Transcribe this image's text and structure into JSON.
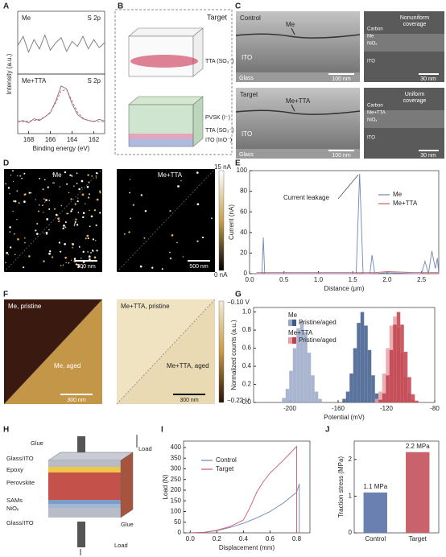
{
  "panel_labels": [
    "A",
    "B",
    "C",
    "D",
    "E",
    "F",
    "G",
    "H",
    "I",
    "J"
  ],
  "panel_b": {
    "title": "Target",
    "top_layer": "TTA (SO₃⁻)",
    "layers": [
      "PVSK (I⁻)",
      "TTA (SO₃⁻)",
      "ITO (InO⁻)"
    ]
  },
  "panel_c": {
    "rows": [
      {
        "title": "Control",
        "film": "Me",
        "substrate": "ITO",
        "glass": "Glass",
        "scale": "100 nm",
        "note": [
          "Nonuniform",
          "coverage"
        ],
        "zoom_layers": [
          "Carbon",
          "Me",
          "NiOₓ",
          "ITO"
        ],
        "zoom_scale": "30 nm"
      },
      {
        "title": "Target",
        "film": "Me+TTA",
        "substrate": "ITO",
        "glass": "Glass",
        "scale": "100 nm",
        "note": [
          "Uniform",
          "coverage"
        ],
        "zoom_layers": [
          "Carbon",
          "Me+TTA",
          "NiOₓ",
          "ITO"
        ],
        "zoom_scale": "30 nm"
      }
    ]
  },
  "panel_d": {
    "images": [
      {
        "label": "Me",
        "scale": "500 nm"
      },
      {
        "label": "Me+TTA",
        "scale": "500 nm"
      }
    ],
    "colorbar": [
      "15 nA",
      "0 nA"
    ]
  },
  "panel_f": {
    "images": [
      {
        "labels": [
          "Me, pristine",
          "Me, aged"
        ],
        "scale": "300 nm"
      },
      {
        "labels": [
          "Me+TTA, pristine",
          "Me+TTA, aged"
        ],
        "scale": "300 nm"
      }
    ],
    "colorbar": [
      "−0.10 V",
      "−0.22 V"
    ]
  },
  "panel_h": {
    "labels": [
      "Glue",
      "Load",
      "Glass/ITO",
      "Epoxy",
      "Perovskite",
      "SAMs",
      "NiOₓ",
      "Glue",
      "Glass/ITO",
      "Load"
    ]
  },
  "chart_data": [
    {
      "type": "line",
      "label": "Me",
      "annotation": "S 2p",
      "ylabel": "Intensity (a.u.)",
      "x": [
        169,
        168.5,
        168,
        167.5,
        167,
        166.5,
        166,
        165.5,
        165,
        164.5,
        164,
        163.5,
        163,
        162.5,
        162,
        161.5,
        161
      ],
      "xlim": [
        169,
        161
      ],
      "ylim": [
        0,
        1
      ],
      "series": [
        {
          "color": "#777777",
          "values": [
            0.45,
            0.6,
            0.35,
            0.55,
            0.4,
            0.62,
            0.38,
            0.5,
            0.58,
            0.36,
            0.52,
            0.44,
            0.6,
            0.4,
            0.55,
            0.42,
            0.5
          ]
        }
      ]
    },
    {
      "type": "line",
      "label": "Me+TTA",
      "annotation": "S 2p",
      "xlabel": "Binding energy (eV)",
      "x": [
        169,
        168.5,
        168,
        167.5,
        167,
        166.5,
        166,
        165.5,
        165,
        164.5,
        164,
        163.5,
        163,
        162.5,
        162,
        161.5,
        161
      ],
      "xlim": [
        169,
        161
      ],
      "ylim": [
        0,
        1
      ],
      "xticks": [
        168,
        166,
        164,
        162
      ],
      "series": [
        {
          "color": "#777777",
          "values": [
            0.2,
            0.22,
            0.18,
            0.25,
            0.22,
            0.28,
            0.35,
            0.55,
            0.8,
            0.75,
            0.5,
            0.32,
            0.25,
            0.22,
            0.2,
            0.24,
            0.21
          ]
        },
        {
          "color": "#d05a6a",
          "values": [
            0.2,
            0.2,
            0.21,
            0.22,
            0.24,
            0.28,
            0.36,
            0.52,
            0.72,
            0.74,
            0.55,
            0.36,
            0.26,
            0.22,
            0.21,
            0.2,
            0.2
          ]
        }
      ]
    },
    {
      "type": "line",
      "xlabel": "Distance (μm)",
      "ylabel": "Current (nA)",
      "annotation": "Current leakage",
      "x": [
        0.1,
        0.18,
        0.2,
        0.22,
        0.3,
        0.6,
        1.0,
        1.4,
        1.55,
        1.6,
        1.65,
        1.75,
        1.78,
        1.82,
        2.0,
        2.4,
        2.5,
        2.55,
        2.6,
        2.65,
        2.7,
        2.73,
        2.75
      ],
      "xlim": [
        0,
        2.75
      ],
      "ylim": [
        0,
        100
      ],
      "xticks": [
        {
          "value": 0,
          "label": "0.0"
        },
        0.5,
        {
          "value": 1,
          "label": "1.0"
        },
        1.5,
        {
          "value": 2,
          "label": "2.0"
        },
        2.5
      ],
      "yticks": [
        0,
        20,
        40,
        60,
        80,
        100
      ],
      "legend": "upper right",
      "series": [
        {
          "name": "Me",
          "color": "#7384b8",
          "values": [
            0,
            0,
            35,
            0,
            0,
            0,
            0,
            0,
            0,
            97,
            0,
            0,
            18,
            0,
            1,
            0,
            0,
            12,
            0,
            22,
            5,
            15,
            0
          ]
        },
        {
          "name": "Me+TTA",
          "color": "#d05a6a",
          "values": [
            1,
            1,
            1,
            1,
            1,
            1,
            1,
            1,
            1,
            1,
            1,
            1,
            1,
            1,
            2,
            1,
            1,
            1,
            1,
            1,
            1,
            1,
            1
          ]
        }
      ]
    },
    {
      "type": "histogram",
      "xlabel": "Potential (mV)",
      "ylabel": "Normalized counts (a.u.)",
      "xlim": [
        -230,
        -80
      ],
      "ylim": [
        0,
        1.05
      ],
      "xticks": [
        -200,
        -160,
        -120,
        -80
      ],
      "yticks": [
        {
          "value": 0,
          "label": "0.0"
        },
        0.2,
        0.4,
        0.6,
        0.8,
        {
          "value": 1,
          "label": "1.0"
        }
      ],
      "legend": [
        {
          "title": "Me",
          "label": "Pristine/aged"
        },
        {
          "title": "Me+TTA",
          "label": "Pristine/aged"
        }
      ],
      "series": [
        {
          "color": "#9aa8c8",
          "x": [
            -205,
            -202,
            -199,
            -196,
            -193,
            -190,
            -187,
            -184,
            -181,
            -178,
            -175
          ],
          "values": [
            0.05,
            0.15,
            0.35,
            0.6,
            0.82,
            0.9,
            0.78,
            0.55,
            0.3,
            0.12,
            0.04
          ]
        },
        {
          "color": "#3d5a8c",
          "x": [
            -155,
            -152,
            -149,
            -146,
            -143,
            -140,
            -137,
            -134,
            -131,
            -128,
            -125
          ],
          "values": [
            0.04,
            0.12,
            0.32,
            0.6,
            0.88,
            1.0,
            0.85,
            0.58,
            0.3,
            0.1,
            0.03
          ]
        },
        {
          "color": "#e8a0a6",
          "x": [
            -128,
            -125,
            -122,
            -119,
            -116,
            -113,
            -110,
            -107,
            -104,
            -101,
            -98
          ],
          "values": [
            0.04,
            0.12,
            0.32,
            0.6,
            0.85,
            0.95,
            0.82,
            0.55,
            0.28,
            0.1,
            0.03
          ]
        },
        {
          "color": "#c0404a",
          "x": [
            -125,
            -122,
            -119,
            -116,
            -113,
            -110,
            -107,
            -104,
            -101,
            -98,
            -95
          ],
          "values": [
            0.03,
            0.1,
            0.3,
            0.58,
            0.86,
            1.0,
            0.86,
            0.56,
            0.28,
            0.09,
            0.02
          ]
        }
      ]
    },
    {
      "type": "line",
      "xlabel": "Displacement (mm)",
      "ylabel": "Load (N)",
      "xlim": [
        -0.05,
        0.9
      ],
      "ylim": [
        0,
        430
      ],
      "xticks": [
        {
          "value": 0,
          "label": "0.0"
        },
        0.2,
        0.4,
        0.6,
        0.8
      ],
      "yticks": [
        0,
        50,
        100,
        150,
        200,
        250,
        300,
        350,
        400
      ],
      "legend": "upper left",
      "series": [
        {
          "name": "Control",
          "color": "#7384b8",
          "x": [
            0,
            0.1,
            0.2,
            0.3,
            0.4,
            0.5,
            0.6,
            0.7,
            0.8,
            0.82,
            0.82
          ],
          "values": [
            0,
            2,
            10,
            25,
            45,
            70,
            100,
            140,
            190,
            230,
            0
          ]
        },
        {
          "name": "Target",
          "color": "#d05a6a",
          "x": [
            0,
            0.1,
            0.2,
            0.3,
            0.4,
            0.45,
            0.5,
            0.55,
            0.6,
            0.7,
            0.8,
            0.8
          ],
          "values": [
            0,
            2,
            12,
            30,
            60,
            120,
            190,
            240,
            280,
            340,
            405,
            0
          ]
        }
      ]
    },
    {
      "type": "bar",
      "ylabel": "Traction stress (MPa)",
      "categories": [
        "Control",
        "Target"
      ],
      "values": [
        1.1,
        2.2
      ],
      "value_labels": [
        "1.1 MPa",
        "2.2 MPa"
      ],
      "colors": [
        "#6a80b0",
        "#c9626d"
      ],
      "ylim": [
        0,
        2.5
      ],
      "yticks": [
        0,
        1,
        2
      ]
    }
  ]
}
